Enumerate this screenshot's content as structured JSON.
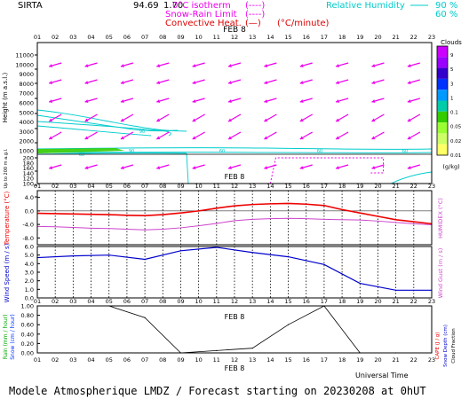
{
  "header": {
    "station": "SIRTA",
    "overlap_number": "94.69",
    "overlap_code": "1.70",
    "legend": [
      {
        "label": "0°C isotherm",
        "paren_line": "(----)",
        "color": "#ee00ee"
      },
      {
        "label": "Snow-Rain Limit",
        "paren_line": "(----)",
        "color": "#ee00ee"
      },
      {
        "label": "Convective Heat.",
        "paren_line": "(—)",
        "unit": "(°C/minute)",
        "color": "#dd0000"
      }
    ],
    "humidity": {
      "label": "Relative Humidity",
      "levels": [
        "90 %",
        "60 %"
      ],
      "color": "#00cccc"
    }
  },
  "date_label": "FEB  8",
  "hour_ticks": [
    "01",
    "02",
    "03",
    "04",
    "05",
    "06",
    "07",
    "08",
    "09",
    "10",
    "11",
    "12",
    "13",
    "14",
    "15",
    "16",
    "17",
    "18",
    "19",
    "20",
    "21",
    "22",
    "23"
  ],
  "footer": {
    "universal_time": "Universal Time",
    "caption": "Modele Atmospherique LMDZ / Forecast starting on 20230208 at 0hUT"
  },
  "colors": {
    "wind_arrows": "#ee00ee",
    "humidity": "#00cccc",
    "temperature": "#ee0000",
    "humidex": "#cc44cc",
    "wind_speed": "#0000cc",
    "precip": "#000000",
    "cloud_bar": [
      "#ffff66",
      "#ccff66",
      "#99ff33",
      "#33cc00",
      "#00ccaa",
      "#0099ff",
      "#0033ff",
      "#3300cc",
      "#9900ff",
      "#cc00ff"
    ]
  },
  "chart_data": [
    {
      "type": "heatmap",
      "panel": "height",
      "ylabel": "Height  (m a.s.l.)",
      "ylabel_low": "Up to 200 m a.g.l.",
      "yticks": [
        "11000",
        "10000",
        "9000",
        "8000",
        "7000",
        "6000",
        "5000",
        "4000",
        "3000",
        "2000",
        "1000",
        "200",
        "180",
        "160",
        "140",
        "120",
        "100"
      ],
      "clouds": {
        "title": "Clouds",
        "levels": [
          "9",
          "5",
          "3",
          "1",
          "0.1",
          "0.05",
          "0.02",
          "0.01"
        ],
        "unit": "(g/kg)"
      },
      "humidity_contour_labels": [
        "90",
        "60",
        "90",
        "60",
        "60",
        "60"
      ],
      "wind_direction": "from east-northeast (arrows pointing west-southwest)",
      "snow_rain_limit_hours": [
        14,
        19
      ]
    },
    {
      "type": "line",
      "panel": "temperature",
      "ylabel": "Temperature (°C)",
      "ylabel_right": "HUMIDEX (°C)",
      "yticks": [
        "4.0",
        "0.0",
        "-4.0",
        "-8.0"
      ],
      "ylim": [
        -10,
        6
      ],
      "x": [
        1,
        2,
        3,
        4,
        5,
        6,
        7,
        8,
        9,
        10,
        11,
        12,
        13,
        14,
        15,
        16,
        17,
        18,
        19,
        20,
        21,
        22,
        23
      ],
      "series": [
        {
          "name": "Temperature",
          "values": [
            -0.7,
            -0.8,
            -0.9,
            -1.0,
            -1.1,
            -1.3,
            -1.4,
            -1.1,
            -0.6,
            0.0,
            0.8,
            1.5,
            1.9,
            2.1,
            2.2,
            2.0,
            1.6,
            0.4,
            -0.6,
            -1.6,
            -2.6,
            -3.2,
            -3.8
          ]
        },
        {
          "name": "Humidex",
          "values": [
            -4.6,
            -4.7,
            -4.9,
            -5.1,
            -5.2,
            -5.4,
            -5.6,
            -5.4,
            -5.0,
            -4.4,
            -3.7,
            -2.9,
            -2.5,
            -2.3,
            -2.2,
            -2.3,
            -2.5,
            -2.6,
            -2.7,
            -3.0,
            -3.4,
            -3.8,
            -4.1
          ]
        }
      ]
    },
    {
      "type": "line",
      "panel": "wind",
      "ylabel": "Wind Speed (m / s)",
      "ylabel_right": "Wind Gust (m / s)",
      "yticks": [
        "6.0",
        "5.0",
        "4.0",
        "3.0",
        "2.0",
        "1.0",
        "0.0"
      ],
      "ylim": [
        0,
        6
      ],
      "x": [
        1,
        3,
        5,
        7,
        9,
        11,
        13,
        15,
        17,
        19,
        21,
        23
      ],
      "series": [
        {
          "name": "Wind speed",
          "values": [
            4.7,
            4.9,
            5.0,
            4.5,
            5.5,
            5.9,
            5.3,
            4.8,
            3.9,
            1.7,
            0.9,
            0.9
          ]
        }
      ]
    },
    {
      "type": "line",
      "panel": "precipitation",
      "ylabel": "Rain (mm / hour)",
      "ylabel2": "Snow (cm / hour)",
      "ylabel_right": "CAPE (J / g)",
      "ylabel_right2": "Snow Depth (cm)",
      "ylabel_right3": "Cloud Fraction",
      "yticks": [
        "1.00",
        "0.80",
        "0.60",
        "0.40",
        "0.20",
        "0.00"
      ],
      "ylim": [
        0,
        1
      ],
      "x": [
        1,
        3,
        5,
        7,
        9,
        11,
        13,
        15,
        17,
        19,
        21,
        23
      ],
      "series": [
        {
          "name": "Cloud fraction",
          "values": [
            1.0,
            1.0,
            1.0,
            0.75,
            0.0,
            0.05,
            0.1,
            0.6,
            1.0,
            0.0,
            0.0,
            0.0
          ]
        }
      ]
    }
  ]
}
